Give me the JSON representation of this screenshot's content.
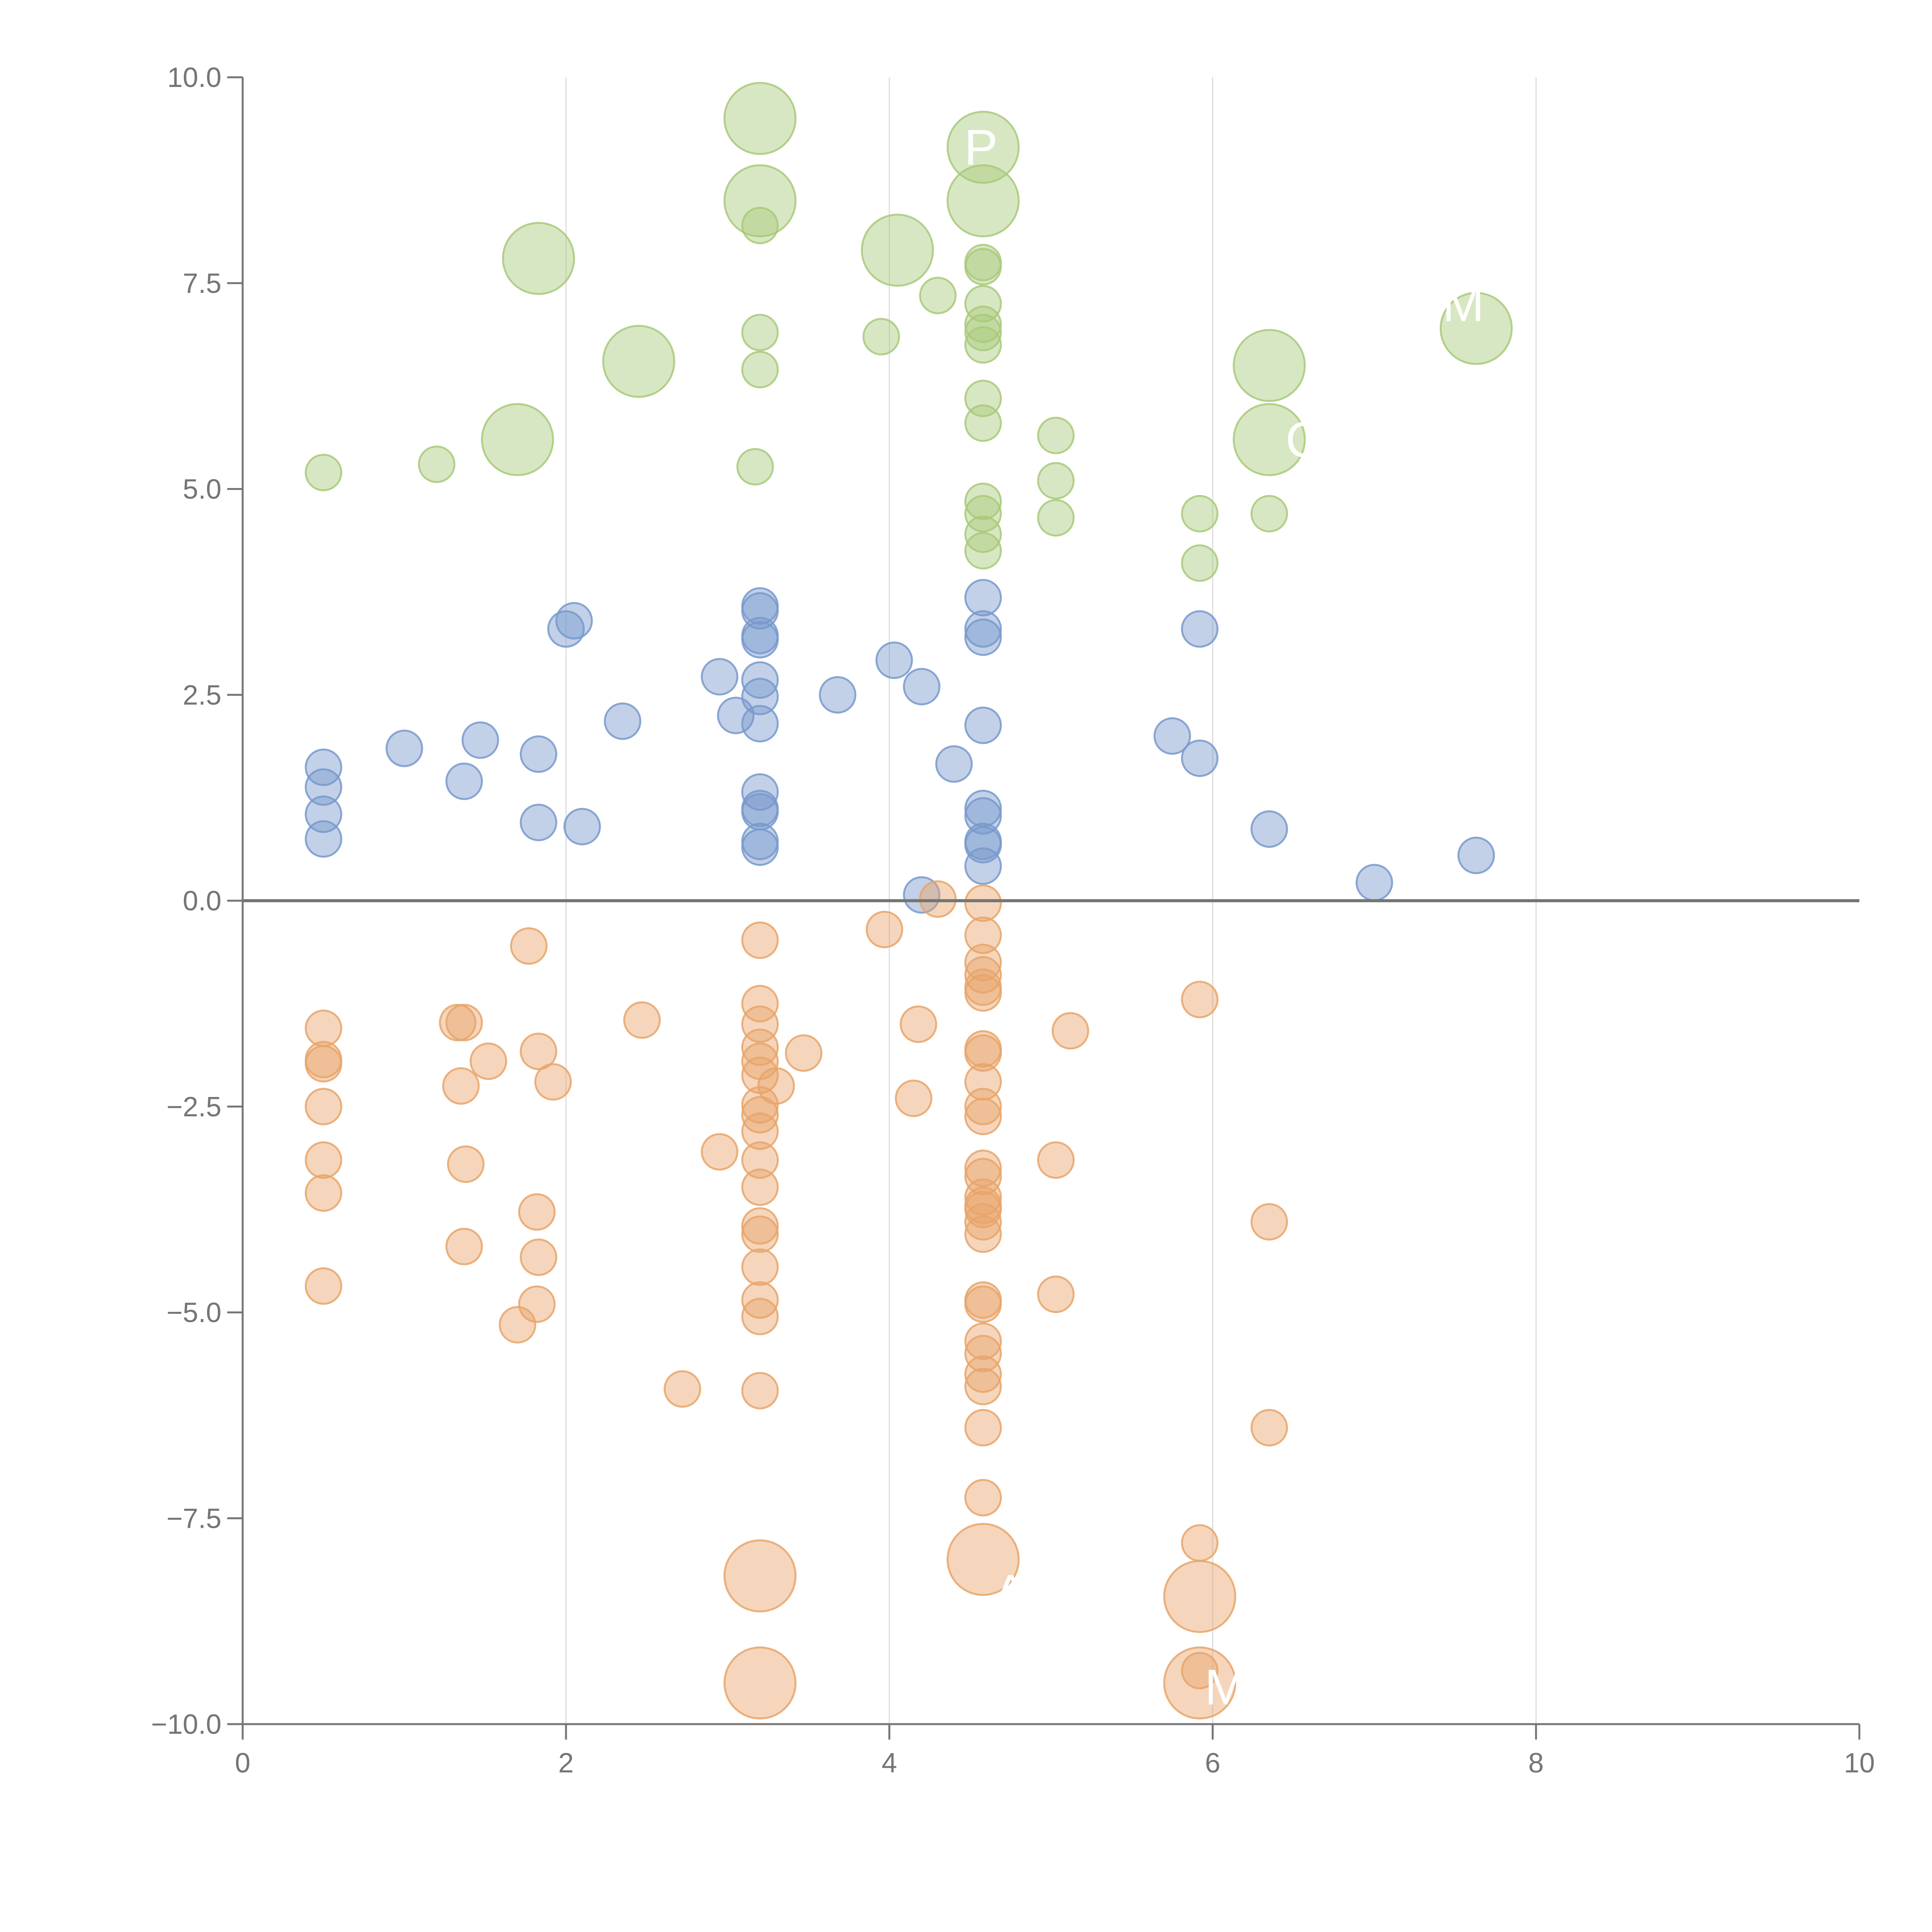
{
  "chart_data": {
    "type": "scatter",
    "title": "",
    "xlabel": "",
    "ylabel": "",
    "xlim": [
      0,
      10
    ],
    "ylim": [
      -10,
      10
    ],
    "x_ticks": [
      0,
      2,
      4,
      6,
      8,
      10
    ],
    "x_tick_labels": [
      "0",
      "2",
      "4",
      "6",
      "8",
      "10"
    ],
    "y_ticks": [
      -10,
      -7.5,
      -5,
      -2.5,
      0,
      2.5,
      5,
      7.5,
      10
    ],
    "y_tick_labels": [
      "−10.0",
      "−7.5",
      "−5.0",
      "−2.5",
      "0.0",
      "2.5",
      "5.0",
      "7.5",
      "10.0"
    ],
    "grid": {
      "vertical": true,
      "horizontal": false
    },
    "zero_line": true,
    "series": [
      {
        "name": "positive-high",
        "color": "#a9c97a",
        "points": [
          {
            "x": 0.5,
            "y": 5.2,
            "size": "small"
          },
          {
            "x": 1.2,
            "y": 5.3,
            "size": "small"
          },
          {
            "x": 1.7,
            "y": 5.6,
            "size": "large"
          },
          {
            "x": 1.83,
            "y": 7.8,
            "size": "large"
          },
          {
            "x": 2.45,
            "y": 6.55,
            "size": "large"
          },
          {
            "x": 3.17,
            "y": 5.27,
            "size": "small"
          },
          {
            "x": 3.2,
            "y": 6.45,
            "size": "small"
          },
          {
            "x": 3.2,
            "y": 6.9,
            "size": "small"
          },
          {
            "x": 3.2,
            "y": 8.2,
            "size": "small"
          },
          {
            "x": 3.2,
            "y": 8.5,
            "size": "large"
          },
          {
            "x": 3.2,
            "y": 9.5,
            "size": "large"
          },
          {
            "x": 3.95,
            "y": 6.85,
            "size": "small"
          },
          {
            "x": 4.05,
            "y": 7.9,
            "size": "large"
          },
          {
            "x": 4.3,
            "y": 7.35,
            "size": "small"
          },
          {
            "x": 4.58,
            "y": 4.25,
            "size": "small"
          },
          {
            "x": 4.58,
            "y": 4.45,
            "size": "small"
          },
          {
            "x": 4.58,
            "y": 4.7,
            "size": "small"
          },
          {
            "x": 4.58,
            "y": 4.85,
            "size": "small"
          },
          {
            "x": 4.58,
            "y": 5.8,
            "size": "small"
          },
          {
            "x": 4.58,
            "y": 6.1,
            "size": "small"
          },
          {
            "x": 4.58,
            "y": 6.75,
            "size": "small"
          },
          {
            "x": 4.58,
            "y": 6.9,
            "size": "small"
          },
          {
            "x": 4.58,
            "y": 7.0,
            "size": "small"
          },
          {
            "x": 4.58,
            "y": 7.25,
            "size": "small"
          },
          {
            "x": 4.58,
            "y": 7.7,
            "size": "small"
          },
          {
            "x": 4.58,
            "y": 7.75,
            "size": "small"
          },
          {
            "x": 4.58,
            "y": 8.5,
            "size": "large"
          },
          {
            "x": 4.58,
            "y": 9.15,
            "size": "large"
          },
          {
            "x": 5.03,
            "y": 4.65,
            "size": "small"
          },
          {
            "x": 5.03,
            "y": 5.1,
            "size": "small"
          },
          {
            "x": 5.03,
            "y": 5.65,
            "size": "small"
          },
          {
            "x": 5.92,
            "y": 4.1,
            "size": "small"
          },
          {
            "x": 5.92,
            "y": 4.7,
            "size": "small"
          },
          {
            "x": 6.35,
            "y": 4.7,
            "size": "small"
          },
          {
            "x": 6.35,
            "y": 5.6,
            "size": "large"
          },
          {
            "x": 6.35,
            "y": 6.5,
            "size": "large"
          },
          {
            "x": 7.63,
            "y": 6.95,
            "size": "large"
          }
        ]
      },
      {
        "name": "positive-low",
        "color": "#7899cc",
        "points": [
          {
            "x": 0.5,
            "y": 0.75,
            "size": "small"
          },
          {
            "x": 0.5,
            "y": 1.05,
            "size": "small"
          },
          {
            "x": 0.5,
            "y": 1.38,
            "size": "small"
          },
          {
            "x": 0.5,
            "y": 1.62,
            "size": "small"
          },
          {
            "x": 1.0,
            "y": 1.85,
            "size": "small"
          },
          {
            "x": 1.37,
            "y": 1.45,
            "size": "small"
          },
          {
            "x": 1.47,
            "y": 1.95,
            "size": "small"
          },
          {
            "x": 1.83,
            "y": 0.95,
            "size": "small"
          },
          {
            "x": 1.83,
            "y": 1.78,
            "size": "small"
          },
          {
            "x": 2.0,
            "y": 3.3,
            "size": "small"
          },
          {
            "x": 2.05,
            "y": 3.4,
            "size": "small"
          },
          {
            "x": 2.1,
            "y": 0.9,
            "size": "small"
          },
          {
            "x": 2.35,
            "y": 2.18,
            "size": "small"
          },
          {
            "x": 2.95,
            "y": 2.72,
            "size": "small"
          },
          {
            "x": 3.05,
            "y": 2.25,
            "size": "small"
          },
          {
            "x": 3.2,
            "y": 0.65,
            "size": "small"
          },
          {
            "x": 3.2,
            "y": 0.72,
            "size": "small"
          },
          {
            "x": 3.2,
            "y": 1.08,
            "size": "small"
          },
          {
            "x": 3.2,
            "y": 1.12,
            "size": "small"
          },
          {
            "x": 3.2,
            "y": 1.32,
            "size": "small"
          },
          {
            "x": 3.2,
            "y": 2.15,
            "size": "small"
          },
          {
            "x": 3.2,
            "y": 2.48,
            "size": "small"
          },
          {
            "x": 3.2,
            "y": 2.68,
            "size": "small"
          },
          {
            "x": 3.2,
            "y": 3.17,
            "size": "small"
          },
          {
            "x": 3.2,
            "y": 3.22,
            "size": "small"
          },
          {
            "x": 3.2,
            "y": 3.52,
            "size": "small"
          },
          {
            "x": 3.2,
            "y": 3.58,
            "size": "small"
          },
          {
            "x": 3.68,
            "y": 2.5,
            "size": "small"
          },
          {
            "x": 4.03,
            "y": 2.92,
            "size": "small"
          },
          {
            "x": 4.2,
            "y": 0.07,
            "size": "small"
          },
          {
            "x": 4.2,
            "y": 2.6,
            "size": "small"
          },
          {
            "x": 4.4,
            "y": 1.66,
            "size": "small"
          },
          {
            "x": 4.58,
            "y": 0.42,
            "size": "small"
          },
          {
            "x": 4.58,
            "y": 0.68,
            "size": "small"
          },
          {
            "x": 4.58,
            "y": 0.72,
            "size": "small"
          },
          {
            "x": 4.58,
            "y": 1.03,
            "size": "small"
          },
          {
            "x": 4.58,
            "y": 1.12,
            "size": "small"
          },
          {
            "x": 4.58,
            "y": 2.13,
            "size": "small"
          },
          {
            "x": 4.58,
            "y": 3.2,
            "size": "small"
          },
          {
            "x": 4.58,
            "y": 3.3,
            "size": "small"
          },
          {
            "x": 4.58,
            "y": 3.68,
            "size": "small"
          },
          {
            "x": 5.75,
            "y": 2.0,
            "size": "small"
          },
          {
            "x": 5.92,
            "y": 1.73,
            "size": "small"
          },
          {
            "x": 5.92,
            "y": 3.3,
            "size": "small"
          },
          {
            "x": 6.35,
            "y": 0.87,
            "size": "small"
          },
          {
            "x": 7.0,
            "y": 0.22,
            "size": "small"
          },
          {
            "x": 7.63,
            "y": 0.55,
            "size": "small"
          }
        ]
      },
      {
        "name": "negative",
        "color": "#e8a56a",
        "points": [
          {
            "x": 0.5,
            "y": -1.55,
            "size": "small"
          },
          {
            "x": 0.5,
            "y": -1.93,
            "size": "small"
          },
          {
            "x": 0.5,
            "y": -1.98,
            "size": "small"
          },
          {
            "x": 0.5,
            "y": -2.5,
            "size": "small"
          },
          {
            "x": 0.5,
            "y": -3.15,
            "size": "small"
          },
          {
            "x": 0.5,
            "y": -3.55,
            "size": "small"
          },
          {
            "x": 0.5,
            "y": -4.68,
            "size": "small"
          },
          {
            "x": 1.33,
            "y": -1.48,
            "size": "small"
          },
          {
            "x": 1.35,
            "y": -2.25,
            "size": "small"
          },
          {
            "x": 1.37,
            "y": -1.48,
            "size": "small"
          },
          {
            "x": 1.37,
            "y": -4.2,
            "size": "small"
          },
          {
            "x": 1.38,
            "y": -3.2,
            "size": "small"
          },
          {
            "x": 1.52,
            "y": -1.95,
            "size": "small"
          },
          {
            "x": 1.7,
            "y": -5.15,
            "size": "small"
          },
          {
            "x": 1.77,
            "y": -0.55,
            "size": "small"
          },
          {
            "x": 1.82,
            "y": -3.78,
            "size": "small"
          },
          {
            "x": 1.82,
            "y": -4.9,
            "size": "small"
          },
          {
            "x": 1.83,
            "y": -1.83,
            "size": "small"
          },
          {
            "x": 1.83,
            "y": -4.33,
            "size": "small"
          },
          {
            "x": 1.92,
            "y": -2.2,
            "size": "small"
          },
          {
            "x": 2.47,
            "y": -1.45,
            "size": "small"
          },
          {
            "x": 2.72,
            "y": -5.93,
            "size": "small"
          },
          {
            "x": 2.95,
            "y": -3.05,
            "size": "small"
          },
          {
            "x": 3.2,
            "y": -0.48,
            "size": "small"
          },
          {
            "x": 3.2,
            "y": -1.25,
            "size": "small"
          },
          {
            "x": 3.2,
            "y": -1.5,
            "size": "small"
          },
          {
            "x": 3.2,
            "y": -1.78,
            "size": "small"
          },
          {
            "x": 3.2,
            "y": -1.95,
            "size": "small"
          },
          {
            "x": 3.2,
            "y": -2.12,
            "size": "small"
          },
          {
            "x": 3.2,
            "y": -2.48,
            "size": "small"
          },
          {
            "x": 3.2,
            "y": -2.6,
            "size": "small"
          },
          {
            "x": 3.2,
            "y": -2.8,
            "size": "small"
          },
          {
            "x": 3.2,
            "y": -3.15,
            "size": "small"
          },
          {
            "x": 3.2,
            "y": -3.48,
            "size": "small"
          },
          {
            "x": 3.2,
            "y": -3.95,
            "size": "small"
          },
          {
            "x": 3.2,
            "y": -4.05,
            "size": "small"
          },
          {
            "x": 3.2,
            "y": -4.45,
            "size": "small"
          },
          {
            "x": 3.2,
            "y": -4.85,
            "size": "small"
          },
          {
            "x": 3.2,
            "y": -5.05,
            "size": "small"
          },
          {
            "x": 3.2,
            "y": -5.95,
            "size": "small"
          },
          {
            "x": 3.2,
            "y": -8.2,
            "size": "large"
          },
          {
            "x": 3.2,
            "y": -9.5,
            "size": "large"
          },
          {
            "x": 3.3,
            "y": -2.25,
            "size": "small"
          },
          {
            "x": 3.47,
            "y": -1.85,
            "size": "small"
          },
          {
            "x": 3.97,
            "y": -0.35,
            "size": "small"
          },
          {
            "x": 4.15,
            "y": -2.4,
            "size": "small"
          },
          {
            "x": 4.18,
            "y": -1.5,
            "size": "small"
          },
          {
            "x": 4.3,
            "y": 0.02,
            "size": "small"
          },
          {
            "x": 4.58,
            "y": -0.03,
            "size": "small"
          },
          {
            "x": 4.58,
            "y": -0.42,
            "size": "small"
          },
          {
            "x": 4.58,
            "y": -0.75,
            "size": "small"
          },
          {
            "x": 4.58,
            "y": -0.9,
            "size": "small"
          },
          {
            "x": 4.58,
            "y": -1.05,
            "size": "small"
          },
          {
            "x": 4.58,
            "y": -1.12,
            "size": "small"
          },
          {
            "x": 4.58,
            "y": -1.8,
            "size": "small"
          },
          {
            "x": 4.58,
            "y": -1.85,
            "size": "small"
          },
          {
            "x": 4.58,
            "y": -2.2,
            "size": "small"
          },
          {
            "x": 4.58,
            "y": -2.5,
            "size": "small"
          },
          {
            "x": 4.58,
            "y": -2.62,
            "size": "small"
          },
          {
            "x": 4.58,
            "y": -3.25,
            "size": "small"
          },
          {
            "x": 4.58,
            "y": -3.35,
            "size": "small"
          },
          {
            "x": 4.58,
            "y": -3.6,
            "size": "small"
          },
          {
            "x": 4.58,
            "y": -3.7,
            "size": "small"
          },
          {
            "x": 4.58,
            "y": -3.75,
            "size": "small"
          },
          {
            "x": 4.58,
            "y": -3.9,
            "size": "small"
          },
          {
            "x": 4.58,
            "y": -4.05,
            "size": "small"
          },
          {
            "x": 4.58,
            "y": -4.85,
            "size": "small"
          },
          {
            "x": 4.58,
            "y": -4.9,
            "size": "small"
          },
          {
            "x": 4.58,
            "y": -5.35,
            "size": "small"
          },
          {
            "x": 4.58,
            "y": -5.5,
            "size": "small"
          },
          {
            "x": 4.58,
            "y": -5.75,
            "size": "small"
          },
          {
            "x": 4.58,
            "y": -5.9,
            "size": "small"
          },
          {
            "x": 4.58,
            "y": -6.4,
            "size": "small"
          },
          {
            "x": 4.58,
            "y": -7.25,
            "size": "small"
          },
          {
            "x": 4.58,
            "y": -8.0,
            "size": "large"
          },
          {
            "x": 5.03,
            "y": -3.15,
            "size": "small"
          },
          {
            "x": 5.03,
            "y": -4.78,
            "size": "small"
          },
          {
            "x": 5.12,
            "y": -1.58,
            "size": "small"
          },
          {
            "x": 5.92,
            "y": -1.2,
            "size": "small"
          },
          {
            "x": 5.92,
            "y": -7.8,
            "size": "small"
          },
          {
            "x": 5.92,
            "y": -8.45,
            "size": "large"
          },
          {
            "x": 5.92,
            "y": -9.35,
            "size": "small"
          },
          {
            "x": 5.92,
            "y": -9.5,
            "size": "large"
          },
          {
            "x": 6.35,
            "y": -3.9,
            "size": "small"
          },
          {
            "x": 6.35,
            "y": -6.4,
            "size": "small"
          }
        ]
      }
    ],
    "annotations": [
      {
        "text": "V P",
        "x": 4.42,
        "y": 9.15,
        "anchor": "middle"
      },
      {
        "text": "M",
        "x": 7.55,
        "y": 7.25,
        "anchor": "middle"
      },
      {
        "text": "C",
        "x": 6.45,
        "y": 5.6,
        "anchor": "start"
      },
      {
        "text": "A",
        "x": 4.75,
        "y": -8.4,
        "anchor": "middle"
      },
      {
        "text": "M",
        "x": 5.95,
        "y": -9.55,
        "anchor": "start"
      }
    ]
  }
}
